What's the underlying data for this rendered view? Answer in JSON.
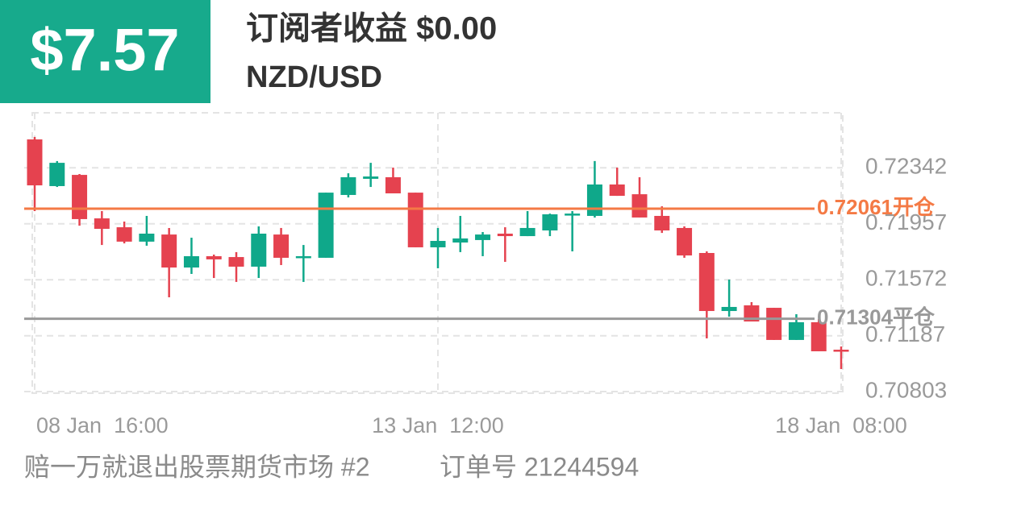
{
  "header": {
    "price": "$7.57",
    "title": "订阅者收益 $0.00",
    "symbol": "NZD/USD"
  },
  "footer": {
    "name": "赔一万就退出股票期货市场 #2",
    "order": "订单号 21244594"
  },
  "chart_data": {
    "type": "candlestick",
    "categories": [
      "08 Jan  16:00",
      null,
      null,
      null,
      null,
      null,
      null,
      null,
      null,
      null,
      null,
      null,
      null,
      null,
      null,
      null,
      null,
      null,
      "13 Jan  12:00",
      null,
      null,
      null,
      null,
      null,
      null,
      null,
      null,
      null,
      null,
      null,
      null,
      null,
      null,
      null,
      null,
      null,
      "18 Jan  08:00"
    ],
    "open": [
      0.72537,
      0.72216,
      0.72293,
      0.71994,
      0.71933,
      0.71834,
      0.71883,
      0.71656,
      0.71734,
      0.71728,
      0.71662,
      0.71883,
      0.71723,
      0.71723,
      0.72155,
      0.72266,
      0.72277,
      0.72171,
      0.71795,
      0.71828,
      0.71845,
      0.71889,
      0.71872,
      0.71911,
      0.72016,
      0.72011,
      0.72227,
      0.7216,
      0.72011,
      0.71928,
      0.71756,
      0.71357,
      0.71396,
      0.71379,
      0.71158,
      0.7128,
      0.71091
    ],
    "high": [
      0.72554,
      0.72388,
      0.72299,
      0.72044,
      0.71972,
      0.72011,
      0.71928,
      0.71861,
      0.71745,
      0.71762,
      0.71939,
      0.71928,
      0.71811,
      0.72171,
      0.72304,
      0.72376,
      0.72343,
      0.72171,
      0.71928,
      0.72011,
      0.719,
      0.71933,
      0.72044,
      0.72027,
      0.72044,
      0.72388,
      0.72343,
      0.72277,
      0.72077,
      0.71939,
      0.71767,
      0.71573,
      0.71418,
      0.71379,
      0.71335,
      0.71302,
      0.71113
    ],
    "low": [
      0.72044,
      0.7221,
      0.71944,
      0.71811,
      0.71822,
      0.71806,
      0.71451,
      0.71612,
      0.71584,
      0.71557,
      0.71584,
      0.71673,
      0.71557,
      0.71723,
      0.72138,
      0.7221,
      0.72166,
      0.71795,
      0.71651,
      0.71762,
      0.71734,
      0.71695,
      0.71872,
      0.71872,
      0.71767,
      0.72,
      0.72149,
      0.72,
      0.71894,
      0.71723,
      0.71169,
      0.71318,
      0.71285,
      0.71158,
      0.71158,
      0.7108,
      0.70958
    ],
    "close": [
      0.72221,
      0.72376,
      0.71989,
      0.71922,
      0.71834,
      0.71889,
      0.71656,
      0.71734,
      0.71712,
      0.71662,
      0.71889,
      0.71723,
      0.71734,
      0.72171,
      0.72277,
      0.72282,
      0.72166,
      0.71795,
      0.71839,
      0.71856,
      0.71883,
      0.71872,
      0.71928,
      0.72022,
      0.72027,
      0.72227,
      0.72149,
      0.72,
      0.71911,
      0.71739,
      0.71357,
      0.71385,
      0.71285,
      0.71158,
      0.7128,
      0.7108,
      0.7108
    ],
    "up_color": "#0fa88a",
    "down_color": "#e5424f",
    "ylim": [
      0.70792,
      0.7272
    ],
    "yticks": [
      0.72342,
      0.71957,
      0.71572,
      0.71187,
      0.70803
    ],
    "grid": true,
    "horizontal_lines": [
      {
        "value": 0.72061,
        "label": "0.72061开仓",
        "color": "#f47a45"
      },
      {
        "value": 0.71304,
        "label": "0.71304平仓",
        "color": "#999999"
      }
    ]
  }
}
